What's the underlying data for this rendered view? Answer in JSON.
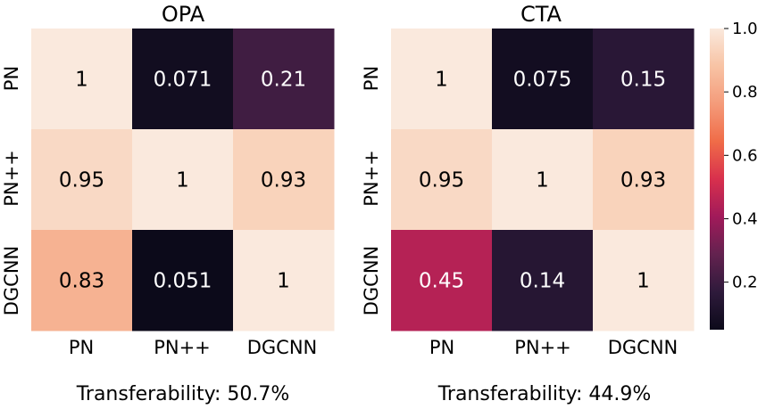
{
  "chart_data": {
    "type": "heatmap",
    "panels": [
      {
        "title": "OPA",
        "row_labels": [
          "PN",
          "PN++",
          "DGCNN"
        ],
        "col_labels": [
          "PN",
          "PN++",
          "DGCNN"
        ],
        "values": [
          [
            1,
            0.071,
            0.21
          ],
          [
            0.95,
            1,
            0.93
          ],
          [
            0.83,
            0.051,
            1
          ]
        ],
        "cell_labels": [
          [
            "1",
            "0.071",
            "0.21"
          ],
          [
            "0.95",
            "1",
            "0.93"
          ],
          [
            "0.83",
            "0.051",
            "1"
          ]
        ],
        "caption": "Transferability: 50.7%"
      },
      {
        "title": "CTA",
        "row_labels": [
          "PN",
          "PN++",
          "DGCNN"
        ],
        "col_labels": [
          "PN",
          "PN++",
          "DGCNN"
        ],
        "values": [
          [
            1,
            0.075,
            0.15
          ],
          [
            0.95,
            1,
            0.93
          ],
          [
            0.45,
            0.14,
            1
          ]
        ],
        "cell_labels": [
          [
            "1",
            "0.075",
            "0.15"
          ],
          [
            "0.95",
            "1",
            "0.93"
          ],
          [
            "0.45",
            "0.14",
            "1"
          ]
        ],
        "caption": "Transferability: 44.9%"
      }
    ],
    "colorbar": {
      "colormap": "rocket",
      "range": [
        0.05,
        1.0
      ],
      "ticks": [
        0.2,
        0.4,
        0.6,
        0.8,
        1.0
      ],
      "tick_labels": [
        "0.2",
        "0.4",
        "0.6",
        "0.8",
        "1.0"
      ]
    }
  },
  "colors": {
    "cmap_stops": [
      "#0c0a1a",
      "#2e1a3b",
      "#63224f",
      "#a11a5a",
      "#d8304d",
      "#f06c48",
      "#f49b7a",
      "#f8c3a4",
      "#fae9dd"
    ]
  }
}
